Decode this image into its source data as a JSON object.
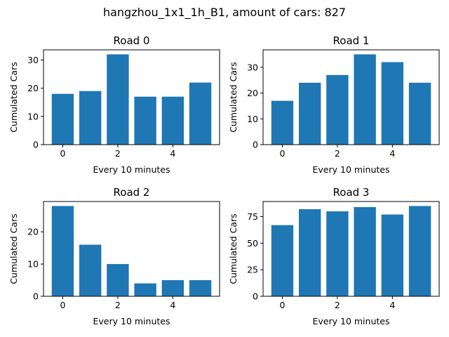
{
  "figure": {
    "suptitle": "hangzhou_1x1_1h_B1, amount of cars: 827"
  },
  "chart_data": [
    {
      "type": "bar",
      "title": "Road 0",
      "xlabel": "Every 10 minutes",
      "ylabel": "Cumulated Cars",
      "categories": [
        0,
        1,
        2,
        3,
        4,
        5
      ],
      "values": [
        18,
        19,
        32,
        17,
        17,
        22
      ],
      "xlim": [
        -0.7,
        5.7
      ],
      "ylim": [
        0,
        33.6
      ],
      "xticks": [
        0,
        2,
        4
      ],
      "yticks": [
        0,
        10,
        20,
        30
      ],
      "bar_color": "#1f77b4",
      "grid": false
    },
    {
      "type": "bar",
      "title": "Road 1",
      "xlabel": "Every 10 minutes",
      "ylabel": "Cumulated Cars",
      "categories": [
        0,
        1,
        2,
        3,
        4,
        5
      ],
      "values": [
        17,
        24,
        27,
        35,
        32,
        24
      ],
      "xlim": [
        -0.7,
        5.7
      ],
      "ylim": [
        0,
        36.75
      ],
      "xticks": [
        0,
        2,
        4
      ],
      "yticks": [
        0,
        10,
        20,
        30
      ],
      "bar_color": "#1f77b4",
      "grid": false
    },
    {
      "type": "bar",
      "title": "Road 2",
      "xlabel": "Every 10 minutes",
      "ylabel": "Cumulated Cars",
      "categories": [
        0,
        1,
        2,
        3,
        4,
        5
      ],
      "values": [
        28,
        16,
        10,
        4,
        5,
        5
      ],
      "xlim": [
        -0.7,
        5.7
      ],
      "ylim": [
        0,
        29.4
      ],
      "xticks": [
        0,
        2,
        4
      ],
      "yticks": [
        0,
        10,
        20
      ],
      "bar_color": "#1f77b4",
      "grid": false
    },
    {
      "type": "bar",
      "title": "Road 3",
      "xlabel": "Every 10 minutes",
      "ylabel": "Cumulated Cars",
      "categories": [
        0,
        1,
        2,
        3,
        4,
        5
      ],
      "values": [
        67,
        82,
        80,
        84,
        77,
        85
      ],
      "xlim": [
        -0.7,
        5.7
      ],
      "ylim": [
        0,
        89.25
      ],
      "xticks": [
        0,
        2,
        4
      ],
      "yticks": [
        0,
        25,
        50,
        75
      ],
      "bar_color": "#1f77b4",
      "grid": false
    }
  ]
}
